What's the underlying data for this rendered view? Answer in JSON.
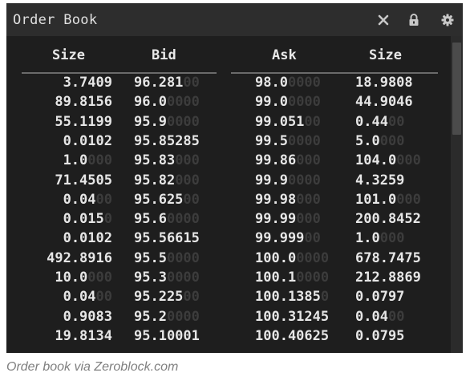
{
  "window": {
    "title": "Order Book",
    "icons": [
      "close-icon",
      "lock-icon",
      "gear-icon"
    ]
  },
  "columns": [
    "Size",
    "Bid",
    "Ask",
    "Size"
  ],
  "rows": [
    {
      "bid_size": "3.7409",
      "bid_size_pad": "",
      "bid": "96.281",
      "bid_pad": "00",
      "ask": "98.0",
      "ask_pad": "0000",
      "ask_size": "18.9808",
      "ask_size_pad": ""
    },
    {
      "bid_size": "89.8156",
      "bid_size_pad": "",
      "bid": "96.0",
      "bid_pad": "0000",
      "ask": "99.0",
      "ask_pad": "0000",
      "ask_size": "44.9046",
      "ask_size_pad": ""
    },
    {
      "bid_size": "55.1199",
      "bid_size_pad": "",
      "bid": "95.9",
      "bid_pad": "0000",
      "ask": "99.051",
      "ask_pad": "00",
      "ask_size": "0.44",
      "ask_size_pad": "00"
    },
    {
      "bid_size": "0.0102",
      "bid_size_pad": "",
      "bid": "95.85285",
      "bid_pad": "",
      "ask": "99.5",
      "ask_pad": "0000",
      "ask_size": "5.0",
      "ask_size_pad": "000"
    },
    {
      "bid_size": "1.0",
      "bid_size_pad": "000",
      "bid": "95.83",
      "bid_pad": "000",
      "ask": "99.86",
      "ask_pad": "000",
      "ask_size": "104.0",
      "ask_size_pad": "000"
    },
    {
      "bid_size": "71.4505",
      "bid_size_pad": "",
      "bid": "95.82",
      "bid_pad": "000",
      "ask": "99.9",
      "ask_pad": "0000",
      "ask_size": "4.3259",
      "ask_size_pad": ""
    },
    {
      "bid_size": "0.04",
      "bid_size_pad": "00",
      "bid": "95.625",
      "bid_pad": "00",
      "ask": "99.98",
      "ask_pad": "000",
      "ask_size": "101.0",
      "ask_size_pad": "000"
    },
    {
      "bid_size": "0.015",
      "bid_size_pad": "0",
      "bid": "95.6",
      "bid_pad": "0000",
      "ask": "99.99",
      "ask_pad": "000",
      "ask_size": "200.8452",
      "ask_size_pad": ""
    },
    {
      "bid_size": "0.0102",
      "bid_size_pad": "",
      "bid": "95.56615",
      "bid_pad": "",
      "ask": "99.999",
      "ask_pad": "00",
      "ask_size": "1.0",
      "ask_size_pad": "000"
    },
    {
      "bid_size": "492.8916",
      "bid_size_pad": "",
      "bid": "95.5",
      "bid_pad": "0000",
      "ask": "100.0",
      "ask_pad": "0000",
      "ask_size": "678.7475",
      "ask_size_pad": ""
    },
    {
      "bid_size": "10.0",
      "bid_size_pad": "000",
      "bid": "95.3",
      "bid_pad": "0000",
      "ask": "100.1",
      "ask_pad": "0000",
      "ask_size": "212.8869",
      "ask_size_pad": ""
    },
    {
      "bid_size": "0.04",
      "bid_size_pad": "00",
      "bid": "95.225",
      "bid_pad": "00",
      "ask": "100.1385",
      "ask_pad": "0",
      "ask_size": "0.0797",
      "ask_size_pad": ""
    },
    {
      "bid_size": "0.9083",
      "bid_size_pad": "",
      "bid": "95.2",
      "bid_pad": "0000",
      "ask": "100.31245",
      "ask_pad": "",
      "ask_size": "0.04",
      "ask_size_pad": "00"
    },
    {
      "bid_size": "19.8134",
      "bid_size_pad": "",
      "bid": "95.10001",
      "bid_pad": "",
      "ask": "100.40625",
      "ask_pad": "",
      "ask_size": "0.0795",
      "ask_size_pad": ""
    }
  ],
  "caption": "Order book via Zeroblock.com",
  "colors": {
    "panel_bg": "#1e1e1e",
    "titlebar_bg": "#2d2d2d",
    "text": "#e6e6e6",
    "pad_zeros": "#3c3c3c",
    "caption": "#7f7f7f"
  }
}
